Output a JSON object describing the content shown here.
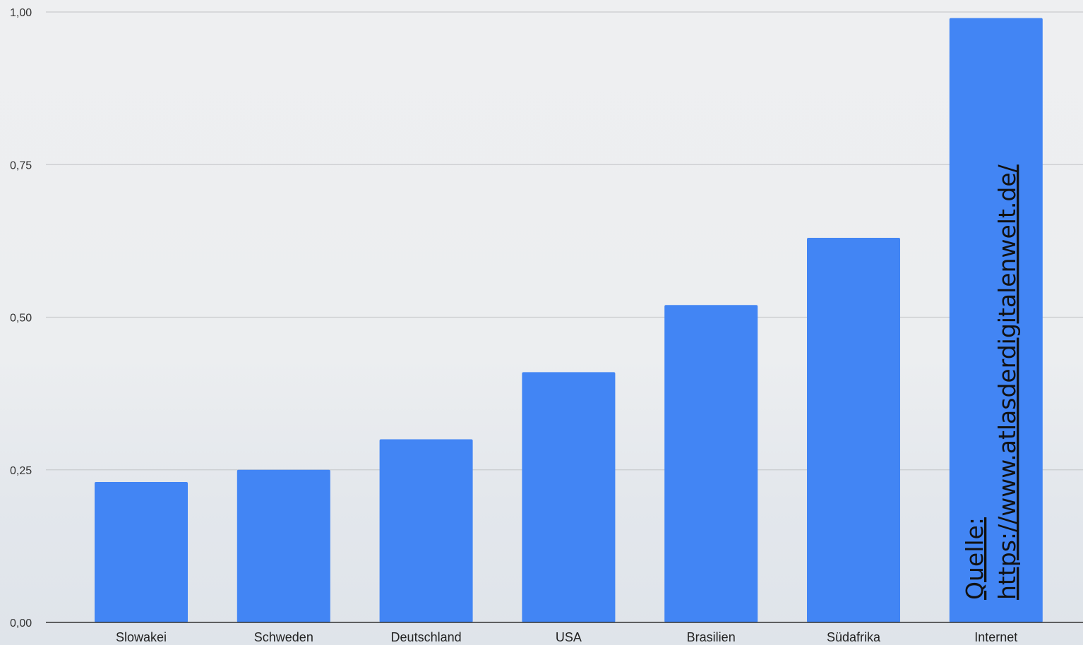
{
  "chart_data": {
    "type": "bar",
    "categories": [
      "Slowakei",
      "Schweden",
      "Deutschland",
      "USA",
      "Brasilien",
      "Südafrika",
      "Internet"
    ],
    "values": [
      0.23,
      0.25,
      0.3,
      0.41,
      0.52,
      0.63,
      0.99
    ],
    "ylim": [
      0,
      1
    ],
    "yticks": [
      "0,00",
      "0,25",
      "0,50",
      "0,75",
      "1,00"
    ],
    "ytick_values": [
      0,
      0.25,
      0.5,
      0.75,
      1.0
    ],
    "bar_color": "#4285f4",
    "grid": true,
    "legend": "none"
  },
  "source": {
    "label": "Quelle:",
    "url": "https://www.atlasderdigitalenwelt.de/"
  }
}
